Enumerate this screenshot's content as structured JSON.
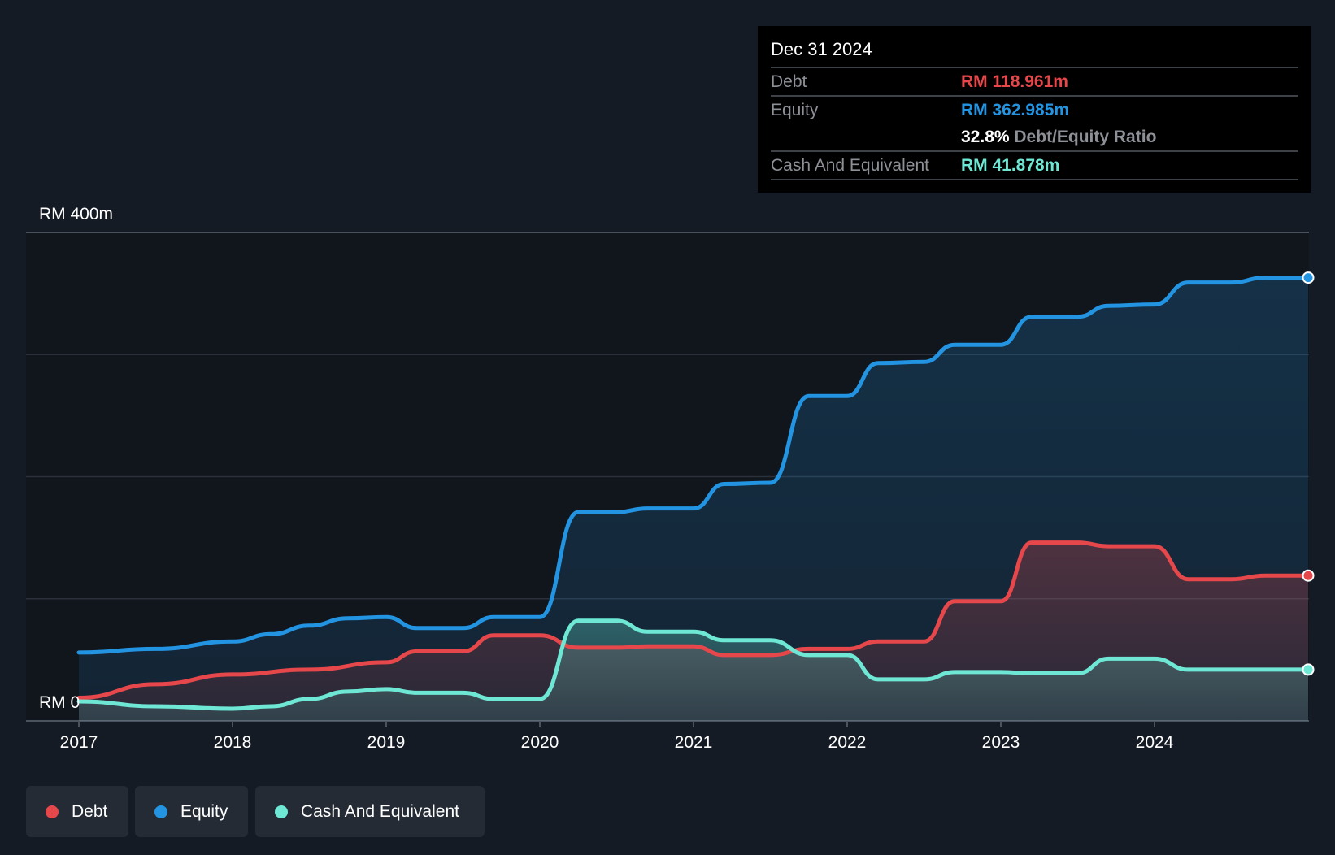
{
  "colors": {
    "background": "#151b24",
    "plot_background": "#11151c",
    "debt": "#e5474b",
    "equity": "#2394e2",
    "cash": "#6ee8d5",
    "gridline": "#2a313b",
    "axis_text": "#ffffff"
  },
  "tooltip": {
    "date": "Dec 31 2024",
    "debt_label": "Debt",
    "debt_value": "RM 118.961m",
    "equity_label": "Equity",
    "equity_value": "RM 362.985m",
    "ratio_pct": "32.8%",
    "ratio_label": "Debt/Equity Ratio",
    "cash_label": "Cash And Equivalent",
    "cash_value": "RM 41.878m"
  },
  "legend": [
    {
      "label": "Debt",
      "color": "#e5474b"
    },
    {
      "label": "Equity",
      "color": "#2394e2"
    },
    {
      "label": "Cash And Equivalent",
      "color": "#6ee8d5"
    }
  ],
  "chart_data": {
    "type": "area",
    "title": "",
    "xlabel": "",
    "ylabel": "",
    "ylim": [
      0,
      400
    ],
    "y_gridlines": [
      0,
      100,
      200,
      300,
      400
    ],
    "y_tick_labels": [
      {
        "value": 400,
        "label": "RM 400m"
      },
      {
        "value": 0,
        "label": "RM 0"
      }
    ],
    "xlim": [
      2017.0,
      2025.0
    ],
    "x_ticks": [
      2017,
      2018,
      2019,
      2020,
      2021,
      2022,
      2023,
      2024
    ],
    "x_tick_labels": [
      "2017",
      "2018",
      "2019",
      "2020",
      "2021",
      "2022",
      "2023",
      "2024"
    ],
    "grid": true,
    "legend_position": "bottom-left",
    "series": [
      {
        "name": "Equity",
        "color": "#2394e2",
        "points": [
          [
            2017.0,
            56
          ],
          [
            2017.5,
            59
          ],
          [
            2018.0,
            65
          ],
          [
            2018.25,
            71
          ],
          [
            2018.5,
            78
          ],
          [
            2018.75,
            84
          ],
          [
            2019.0,
            85
          ],
          [
            2019.2,
            76
          ],
          [
            2019.5,
            76
          ],
          [
            2019.7,
            85
          ],
          [
            2020.0,
            85
          ],
          [
            2020.25,
            171
          ],
          [
            2020.5,
            171
          ],
          [
            2020.7,
            174
          ],
          [
            2021.0,
            174
          ],
          [
            2021.2,
            194
          ],
          [
            2021.5,
            195
          ],
          [
            2021.75,
            266
          ],
          [
            2022.0,
            266
          ],
          [
            2022.2,
            293
          ],
          [
            2022.5,
            294
          ],
          [
            2022.7,
            308
          ],
          [
            2023.0,
            308
          ],
          [
            2023.2,
            331
          ],
          [
            2023.5,
            331
          ],
          [
            2023.7,
            340
          ],
          [
            2024.0,
            341
          ],
          [
            2024.22,
            359
          ],
          [
            2024.5,
            359
          ],
          [
            2024.72,
            363
          ],
          [
            2025.0,
            363
          ]
        ]
      },
      {
        "name": "Debt",
        "color": "#e5474b",
        "points": [
          [
            2017.0,
            19
          ],
          [
            2017.5,
            30
          ],
          [
            2018.0,
            38
          ],
          [
            2018.5,
            42
          ],
          [
            2019.0,
            48
          ],
          [
            2019.2,
            57
          ],
          [
            2019.5,
            57
          ],
          [
            2019.7,
            70
          ],
          [
            2020.0,
            70
          ],
          [
            2020.25,
            60
          ],
          [
            2020.5,
            60
          ],
          [
            2020.7,
            61
          ],
          [
            2021.0,
            61
          ],
          [
            2021.2,
            54
          ],
          [
            2021.5,
            54
          ],
          [
            2021.75,
            59
          ],
          [
            2022.0,
            59
          ],
          [
            2022.2,
            65
          ],
          [
            2022.5,
            65
          ],
          [
            2022.7,
            98
          ],
          [
            2023.0,
            98
          ],
          [
            2023.2,
            146
          ],
          [
            2023.5,
            146
          ],
          [
            2023.7,
            143
          ],
          [
            2024.0,
            143
          ],
          [
            2024.22,
            116
          ],
          [
            2024.5,
            116
          ],
          [
            2024.72,
            119
          ],
          [
            2025.0,
            119
          ]
        ]
      },
      {
        "name": "Cash And Equivalent",
        "color": "#6ee8d5",
        "points": [
          [
            2017.0,
            16
          ],
          [
            2017.5,
            12
          ],
          [
            2018.0,
            10
          ],
          [
            2018.25,
            12
          ],
          [
            2018.5,
            18
          ],
          [
            2018.75,
            24
          ],
          [
            2019.0,
            26
          ],
          [
            2019.2,
            23
          ],
          [
            2019.5,
            23
          ],
          [
            2019.7,
            18
          ],
          [
            2020.0,
            18
          ],
          [
            2020.25,
            82
          ],
          [
            2020.5,
            82
          ],
          [
            2020.7,
            73
          ],
          [
            2021.0,
            73
          ],
          [
            2021.2,
            66
          ],
          [
            2021.5,
            66
          ],
          [
            2021.75,
            54
          ],
          [
            2022.0,
            54
          ],
          [
            2022.2,
            34
          ],
          [
            2022.5,
            34
          ],
          [
            2022.7,
            40
          ],
          [
            2023.0,
            40
          ],
          [
            2023.2,
            39
          ],
          [
            2023.5,
            39
          ],
          [
            2023.7,
            51
          ],
          [
            2024.0,
            51
          ],
          [
            2024.22,
            42
          ],
          [
            2024.5,
            42
          ],
          [
            2024.72,
            42
          ],
          [
            2025.0,
            42
          ]
        ]
      }
    ]
  }
}
